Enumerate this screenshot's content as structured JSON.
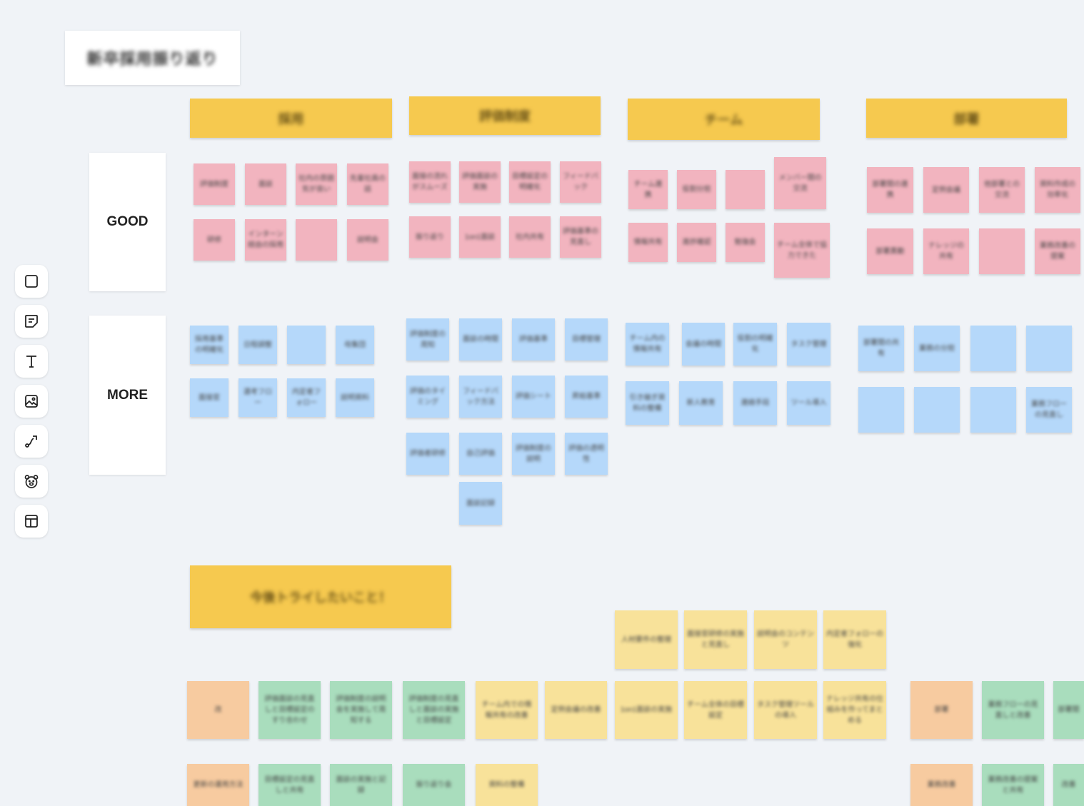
{
  "board": {
    "title": "新卒採用振り返り"
  },
  "toolbar": {
    "items": [
      {
        "icon": "shape-icon",
        "label": "Shape"
      },
      {
        "icon": "sticky-note-icon",
        "label": "Sticky note"
      },
      {
        "icon": "text-icon",
        "label": "Text"
      },
      {
        "icon": "image-icon",
        "label": "Image"
      },
      {
        "icon": "connector-icon",
        "label": "Connector"
      },
      {
        "icon": "bear-icon",
        "label": "Bear"
      },
      {
        "icon": "template-icon",
        "label": "Template"
      }
    ]
  },
  "rows": {
    "good": "GOOD",
    "more": "MORE"
  },
  "columns": [
    "採用",
    "評価制度",
    "チーム",
    "部署"
  ],
  "next_section": {
    "title": "今後トライしたいこと！"
  },
  "notes": {
    "g0": [
      "評価制度",
      "面談",
      "社内の雰囲気が良い",
      "先輩社員の話",
      "研修",
      "インターン経由の採用",
      "",
      "説明会"
    ],
    "g1": [
      "面接の流れがスムーズ",
      "評価面談の実施",
      "目標設定の明確化",
      "フィードバック",
      "振り返り",
      "1on1面談",
      "社内共有",
      "評価基準の見直し"
    ],
    "g2": [
      "チーム連携",
      "役割分担",
      "",
      "メンバー間の交流",
      "情報共有",
      "進捗確認",
      "勉強会",
      "チーム全体で協力できた"
    ],
    "g3": [
      "部署間の連携",
      "定例会議",
      "他部署との交流",
      "資料作成の効率化",
      "部署異動",
      "ナレッジの共有",
      "",
      "業務改善の提案"
    ],
    "m0": [
      "採用基準の明確化",
      "日程調整",
      "",
      "母集団",
      "面接官",
      "選考フロー",
      "内定者フォロー",
      "説明資料"
    ],
    "m1": [
      "評価制度の周知",
      "面談の時間",
      "評価基準",
      "目標管理",
      "評価のタイミング",
      "フィードバック方法",
      "評価シート",
      "昇給基準",
      "評価者研修",
      "自己評価",
      "評価制度の説明",
      "評価の透明性",
      "面談記録"
    ],
    "m2": [
      "チーム内の情報共有",
      "会議の時間",
      "役割の明確化",
      "タスク管理",
      "引き継ぎ資料の整備",
      "新人教育",
      "連絡手段",
      "ツール導入"
    ],
    "m3": [
      "部署間の共有",
      "業務の分担",
      "",
      "",
      "",
      "",
      "",
      "業務フローの見直し"
    ],
    "t_top": [
      "人材要件の整理",
      "面接官研修の実施と見直し",
      "説明会のコンテンツ",
      "内定者フォローの強化"
    ],
    "t_mid_orange": "改",
    "t_mid_green": [
      "評価面談の見直しと目標設定のすり合わせ",
      "評価制度の説明会を実施して周知する",
      "評価制度の見直しと面談の実施と目標設定"
    ],
    "t_mid_yellow": [
      "チーム内での情報共有の改善",
      "定例会議の改善",
      "1on1面談の実施",
      "チーム全体の目標設定",
      "タスク管理ツールの導入",
      "ナレッジ共有の仕組みを作ってまとめる"
    ],
    "t_bot": [
      "更新の運用方法",
      "目標設定の見直しと共有",
      "面談の実施と記録",
      "振り返り会",
      "資料の整備"
    ],
    "t_right": [
      "部署",
      "業務フローの見直しと改善",
      "部署間",
      "業務改善",
      "業務改善の提案と共有",
      "改善"
    ]
  }
}
